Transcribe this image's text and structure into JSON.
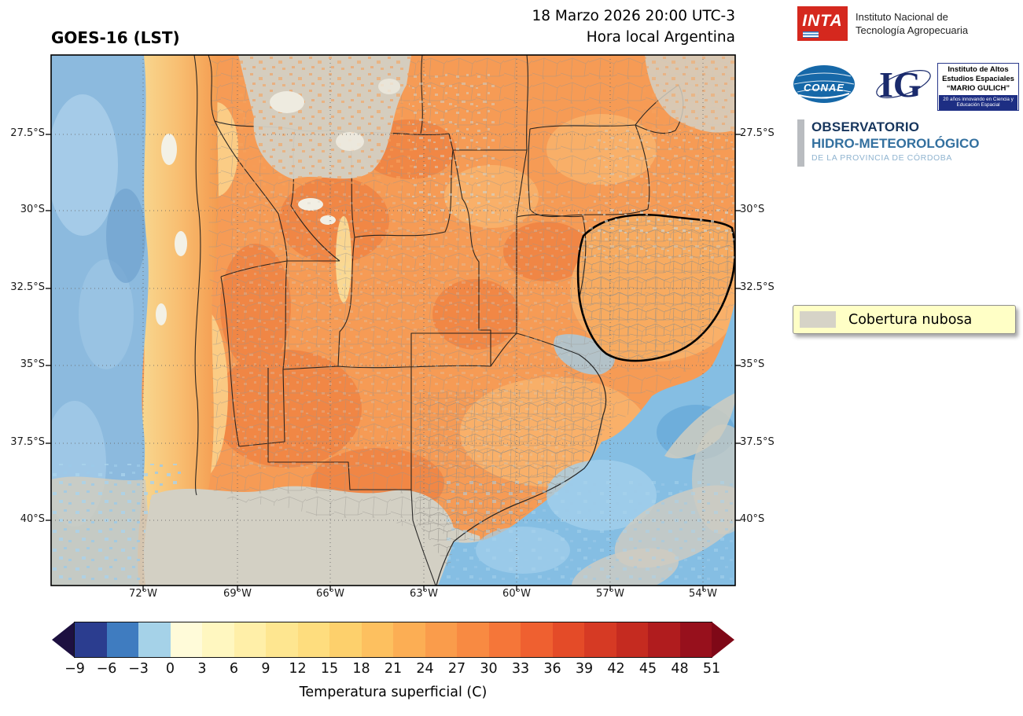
{
  "header": {
    "map_title": "GOES-16 (LST)",
    "datetime_line1": "18 Marzo 2026 20:00 UTC-3",
    "datetime_line2": "Hora local Argentina"
  },
  "logos": {
    "inta": {
      "acronym": "INTA",
      "name_line1": "Instituto Nacional de",
      "name_line2": "Tecnología Agropecuaria"
    },
    "conae": {
      "acronym": "CONAE"
    },
    "gulich": {
      "acronym": "IG",
      "line1": "Instituto de Altos",
      "line2": "Estudios Espaciales",
      "line3": "“MARIO GULICH”",
      "banner": "20 años innovando en Ciencia y Educación Espacial"
    },
    "observatorio": {
      "line1": "OBSERVATORIO",
      "line2": "HIDRO-METEOROLÓGICO",
      "line3": "DE LA PROVINCIA DE CÓRDOBA"
    }
  },
  "legend": {
    "cloud_label": "Cobertura nubosa",
    "cloud_color": "#d6d3c7"
  },
  "map": {
    "lat_labels": [
      "27.5°S",
      "30°S",
      "32.5°S",
      "35°S",
      "37.5°S",
      "40°S"
    ],
    "lon_labels": [
      "72°W",
      "69°W",
      "66°W",
      "63°W",
      "60°W",
      "57°W",
      "54°W"
    ],
    "colors": {
      "warm_land": "#f69b55",
      "ocean": "#85bee3",
      "cloud": "#d3d0c4"
    }
  },
  "colorbar": {
    "label": "Temperatura superficial (C)",
    "ticks": [
      "−9",
      "−6",
      "−3",
      "0",
      "3",
      "6",
      "9",
      "12",
      "15",
      "18",
      "21",
      "24",
      "27",
      "30",
      "33",
      "36",
      "39",
      "42",
      "45",
      "48",
      "51"
    ],
    "segment_colors": [
      "#2b3d8f",
      "#3f7cc0",
      "#a5d2e8",
      "#fffbd9",
      "#fff7c0",
      "#ffefa8",
      "#fee690",
      "#fedd7e",
      "#fdd06c",
      "#fdc05f",
      "#fcae54",
      "#fa9c4b",
      "#f88a42",
      "#f57639",
      "#ef6030",
      "#e44b28",
      "#d63a24",
      "#c52b20",
      "#b01c1e",
      "#97101c"
    ],
    "under_color": "#1d1040",
    "over_color": "#7f0817"
  }
}
